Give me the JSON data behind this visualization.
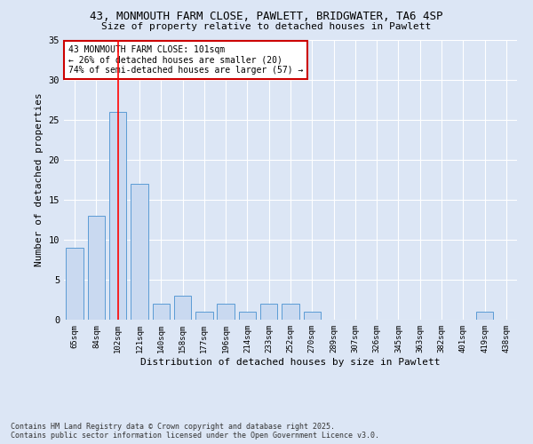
{
  "title1": "43, MONMOUTH FARM CLOSE, PAWLETT, BRIDGWATER, TA6 4SP",
  "title2": "Size of property relative to detached houses in Pawlett",
  "xlabel": "Distribution of detached houses by size in Pawlett",
  "ylabel": "Number of detached properties",
  "categories": [
    "65sqm",
    "84sqm",
    "102sqm",
    "121sqm",
    "140sqm",
    "158sqm",
    "177sqm",
    "196sqm",
    "214sqm",
    "233sqm",
    "252sqm",
    "270sqm",
    "289sqm",
    "307sqm",
    "326sqm",
    "345sqm",
    "363sqm",
    "382sqm",
    "401sqm",
    "419sqm",
    "438sqm"
  ],
  "values": [
    9,
    13,
    26,
    17,
    2,
    3,
    1,
    2,
    1,
    2,
    2,
    1,
    0,
    0,
    0,
    0,
    0,
    0,
    0,
    1,
    0
  ],
  "bar_color": "#c9d9f0",
  "bar_edge_color": "#5b9bd5",
  "vline_x": 2,
  "vline_color": "#ff0000",
  "annotation_text": "43 MONMOUTH FARM CLOSE: 101sqm\n← 26% of detached houses are smaller (20)\n74% of semi-detached houses are larger (57) →",
  "annotation_box_color": "#ffffff",
  "annotation_box_edge": "#cc0000",
  "ylim": [
    0,
    35
  ],
  "yticks": [
    0,
    5,
    10,
    15,
    20,
    25,
    30,
    35
  ],
  "bg_color": "#dce6f5",
  "grid_color": "#ffffff",
  "footer": "Contains HM Land Registry data © Crown copyright and database right 2025.\nContains public sector information licensed under the Open Government Licence v3.0."
}
